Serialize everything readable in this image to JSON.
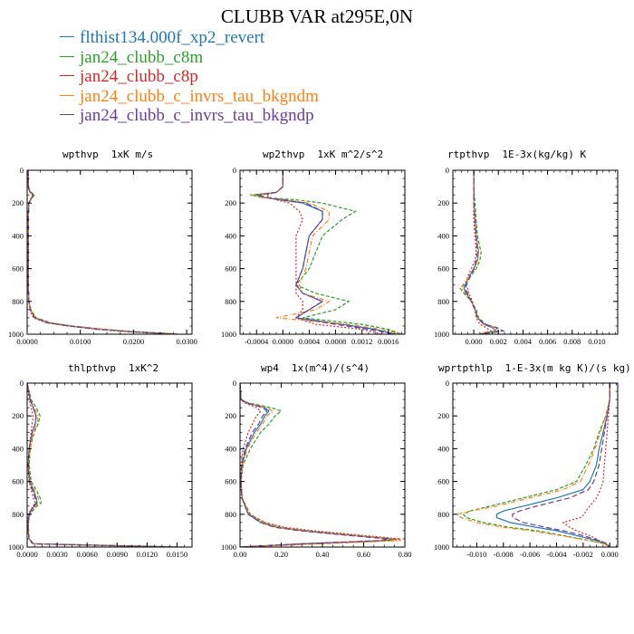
{
  "title": "CLUBB VAR at295E,0N",
  "legend": [
    {
      "name": "flthist134.000f_xp2_revert",
      "color": "#1f77b4",
      "dash": ""
    },
    {
      "name": "jan24_clubb_c8m",
      "color": "#2ca02c",
      "dash": "4,2"
    },
    {
      "name": "jan24_clubb_c8p",
      "color": "#d62728",
      "dash": "2,2"
    },
    {
      "name": "jan24_clubb_c_invrs_tau_bkgndm",
      "color": "#ff7f0e",
      "dash": "5,2,1,2"
    },
    {
      "name": "jan24_clubb_c_invrs_tau_bkgndp",
      "color": "#6a3d9a",
      "dash": "6,3"
    }
  ],
  "chart_data": [
    {
      "type": "line",
      "title": "wpthvp",
      "units": "1xK m/s",
      "ylim": [
        1000,
        0
      ],
      "yticks": [
        0,
        200,
        400,
        600,
        800,
        1000
      ],
      "xlim": [
        0,
        0.031
      ],
      "xticks": [
        "0.0000",
        "0.0100",
        "0.0200",
        "0.0300"
      ],
      "xtick_values": [
        0,
        0.01,
        0.02,
        0.03
      ],
      "y": [
        0,
        100,
        130,
        150,
        170,
        200,
        300,
        500,
        700,
        800,
        850,
        900,
        930,
        950,
        970,
        985,
        995,
        1000
      ],
      "series": [
        {
          "values": [
            0.0002,
            0.0002,
            0.0005,
            0.0012,
            0.0008,
            0.0003,
            0.0002,
            0.0002,
            0.0002,
            0.0003,
            0.0006,
            0.0015,
            0.004,
            0.008,
            0.014,
            0.02,
            0.026,
            0.028
          ]
        },
        {
          "values": [
            0.0002,
            0.0002,
            0.0006,
            0.0014,
            0.0009,
            0.0003,
            0.0002,
            0.0002,
            0.0002,
            0.0003,
            0.0007,
            0.0017,
            0.0045,
            0.0085,
            0.0145,
            0.0205,
            0.0265,
            0.0285
          ]
        },
        {
          "values": [
            0.0002,
            0.0002,
            0.0004,
            0.001,
            0.0007,
            0.0003,
            0.0002,
            0.0002,
            0.0002,
            0.0003,
            0.0005,
            0.0012,
            0.0035,
            0.0075,
            0.013,
            0.019,
            0.025,
            0.027
          ]
        },
        {
          "values": [
            0.0002,
            0.0002,
            0.0005,
            0.0013,
            0.0008,
            0.0003,
            0.0002,
            0.0002,
            0.0002,
            0.0003,
            0.0006,
            0.0016,
            0.0042,
            0.0082,
            0.0142,
            0.0202,
            0.0262,
            0.0282
          ]
        },
        {
          "values": [
            0.0002,
            0.0002,
            0.0005,
            0.0011,
            0.0008,
            0.0003,
            0.0002,
            0.0002,
            0.0002,
            0.0003,
            0.0006,
            0.0014,
            0.0038,
            0.0078,
            0.0135,
            0.0195,
            0.0255,
            0.0275
          ]
        }
      ]
    },
    {
      "type": "line",
      "title": "wp2thvp",
      "units": "1xK m^2/s^2",
      "ylim": [
        1000,
        0
      ],
      "yticks": [
        0,
        200,
        400,
        600,
        800,
        1000
      ],
      "xlim": [
        -0.00065,
        0.00185
      ],
      "xticks": [
        "-0.0004",
        "0.0000",
        "0.0004",
        "0.0008",
        "0.0012",
        "0.0016"
      ],
      "xtick_values": [
        -0.0004,
        0,
        0.0004,
        0.0008,
        0.0012,
        0.0016
      ],
      "y": [
        0,
        100,
        135,
        150,
        165,
        180,
        200,
        250,
        300,
        400,
        500,
        600,
        700,
        750,
        800,
        850,
        900,
        940,
        970,
        1000
      ],
      "series": [
        {
          "values": [
            0,
            0,
            -0.0001,
            -0.0004,
            -0.0003,
            -5e-05,
            0.0003,
            0.0006,
            0.0006,
            0.0004,
            0.00035,
            0.0003,
            0.0002,
            0.0003,
            0.0006,
            0.0004,
            0.0002,
            0.0009,
            0.0014,
            0.0017
          ]
        },
        {
          "values": [
            0,
            0,
            -0.0001,
            -0.0005,
            -0.0003,
            0.0002,
            0.0006,
            0.0011,
            0.0009,
            0.0006,
            0.0005,
            0.0004,
            0.0002,
            0.0005,
            0.001,
            0.0008,
            0.0003,
            0.0012,
            0.0016,
            0.0018
          ]
        },
        {
          "values": [
            0,
            0,
            -0.0001,
            -0.00025,
            -0.0002,
            -0.0001,
            0.0001,
            0.00025,
            0.0003,
            0.0002,
            0.0002,
            0.0002,
            0.0002,
            0.0002,
            0.0003,
            0.0003,
            0.0002,
            0.0005,
            0.0012,
            0.0015
          ]
        },
        {
          "values": [
            0,
            0,
            -0.0001,
            -0.00045,
            -0.00035,
            0,
            0.0004,
            0.0007,
            0.0007,
            0.00045,
            0.0004,
            0.00035,
            0.00025,
            0.0003,
            0.0007,
            0.0005,
            -0.0001,
            0.001,
            0.0015,
            0.0018
          ]
        },
        {
          "values": [
            0,
            0,
            -0.0001,
            -0.00035,
            -0.00025,
            0,
            0.00035,
            0.0006,
            0.0006,
            0.0004,
            0.00035,
            0.0003,
            0.0002,
            0.0003,
            0.0006,
            0.0004,
            0.0002,
            0.0008,
            0.0013,
            0.0017
          ]
        }
      ]
    },
    {
      "type": "line",
      "title": "rtpthvp",
      "units": "1E-3x(kg/kg) K",
      "ylim": [
        1000,
        0
      ],
      "yticks": [
        0,
        200,
        400,
        600,
        800,
        1000
      ],
      "xlim": [
        -0.0017,
        0.0117
      ],
      "xticks": [
        "0.000",
        "0.002",
        "0.004",
        "0.006",
        "0.008",
        "0.010"
      ],
      "xtick_values": [
        0,
        0.002,
        0.004,
        0.006,
        0.008,
        0.01
      ],
      "y": [
        0,
        100,
        200,
        300,
        400,
        500,
        550,
        600,
        650,
        700,
        720,
        750,
        800,
        850,
        900,
        940,
        960,
        980,
        1000
      ],
      "series": [
        {
          "values": [
            0,
            0,
            0,
            0.0001,
            0.0002,
            0.0004,
            0.0003,
            0,
            -0.0004,
            -0.0007,
            -0.0008,
            -0.0006,
            -0.0002,
            0.0001,
            0.0003,
            0.0008,
            0.0015,
            0.0018,
            0.0005
          ]
        },
        {
          "values": [
            0,
            0,
            0.0001,
            0.0002,
            0.0003,
            0.0006,
            0.0005,
            0.0002,
            -0.0003,
            -0.0008,
            -0.0011,
            -0.0008,
            -0.0002,
            0.0002,
            0.0004,
            0.001,
            0.0018,
            0.002,
            0.0006
          ]
        },
        {
          "values": [
            0,
            0,
            0,
            0,
            0.0001,
            0.0002,
            0.0001,
            -0.0002,
            -0.0005,
            -0.0006,
            -0.0005,
            -0.0004,
            -0.0001,
            0.0001,
            0.0002,
            0.0005,
            0.001,
            0.0014,
            0.0004
          ]
        },
        {
          "values": [
            0,
            0,
            0,
            0.0001,
            0.0002,
            0.0004,
            0.0003,
            0.0001,
            -0.0004,
            -0.0009,
            -0.001,
            -0.0007,
            -0.0002,
            0.0001,
            0.0003,
            0.0009,
            0.0016,
            0.0019,
            0.0005
          ]
        },
        {
          "values": [
            0,
            0,
            0,
            0.0001,
            0.0002,
            0.0003,
            0.0002,
            0,
            -0.0003,
            -0.0006,
            -0.0007,
            -0.0005,
            -0.0002,
            0.0001,
            0.0003,
            0.0009,
            0.0019,
            0.0024,
            0.0006
          ]
        }
      ]
    },
    {
      "type": "line",
      "title": "thlpthvp",
      "units": "1xK^2",
      "ylim": [
        1000,
        0
      ],
      "yticks": [
        0,
        200,
        400,
        600,
        800,
        1000
      ],
      "xlim": [
        0,
        0.0165
      ],
      "xticks": [
        "0.0000",
        "0.0030",
        "0.0060",
        "0.0090",
        "0.0120",
        "0.0150"
      ],
      "xtick_values": [
        0,
        0.003,
        0.006,
        0.009,
        0.012,
        0.015
      ],
      "y": [
        0,
        100,
        150,
        200,
        250,
        300,
        400,
        500,
        600,
        650,
        700,
        730,
        760,
        800,
        850,
        900,
        950,
        980,
        1000
      ],
      "series": [
        {
          "values": [
            0,
            0.0003,
            0.0006,
            0.0009,
            0.0008,
            0.0005,
            0.0002,
            0.0001,
            0.0003,
            0.0006,
            0.0009,
            0.001,
            0.0006,
            0.0002,
            0.0001,
            0.0001,
            0.0002,
            0.0006,
            0.015
          ]
        },
        {
          "values": [
            0,
            0.0004,
            0.0009,
            0.0013,
            0.0011,
            0.0007,
            0.0003,
            0.0002,
            0.0004,
            0.0009,
            0.0013,
            0.0014,
            0.0008,
            0.0003,
            0.0001,
            0.0001,
            0.0002,
            0.0007,
            0.016
          ]
        },
        {
          "values": [
            0,
            0.0002,
            0.0004,
            0.0006,
            0.0005,
            0.0004,
            0.0002,
            0.0001,
            0.0002,
            0.0004,
            0.0006,
            0.0008,
            0.0005,
            0.0001,
            0.0001,
            0.0001,
            0.0002,
            0.0005,
            0.014
          ]
        },
        {
          "values": [
            0,
            0.0003,
            0.0007,
            0.0011,
            0.001,
            0.0006,
            0.0003,
            0.0001,
            0.0003,
            0.0007,
            0.0011,
            0.0012,
            0.0007,
            0.0002,
            0.0001,
            0.0001,
            0.0002,
            0.0006,
            0.0155
          ]
        },
        {
          "values": [
            0,
            0.0003,
            0.0006,
            0.0009,
            0.0008,
            0.0005,
            0.0002,
            0.0001,
            0.0002,
            0.0005,
            0.0008,
            0.0009,
            0.0005,
            0.0002,
            0.0001,
            0.0001,
            0.0002,
            0.0006,
            0.0148
          ]
        }
      ]
    },
    {
      "type": "line",
      "title": "wp4",
      "units": "1x(m^4)/(s^4)",
      "ylim": [
        1000,
        0
      ],
      "yticks": [
        0,
        200,
        400,
        600,
        800,
        1000
      ],
      "xlim": [
        0,
        0.8
      ],
      "xticks": [
        "0.00",
        "0.20",
        "0.40",
        "0.60",
        "0.80"
      ],
      "xtick_values": [
        0,
        0.2,
        0.4,
        0.6,
        0.8
      ],
      "y": [
        0,
        100,
        120,
        150,
        170,
        200,
        250,
        300,
        400,
        500,
        600,
        700,
        800,
        850,
        880,
        900,
        930,
        950,
        960,
        980,
        1000
      ],
      "series": [
        {
          "values": [
            0,
            0.005,
            0.03,
            0.12,
            0.14,
            0.12,
            0.1,
            0.07,
            0.03,
            0.01,
            0.005,
            0.01,
            0.04,
            0.1,
            0.18,
            0.3,
            0.55,
            0.75,
            0.7,
            0.3,
            0
          ]
        },
        {
          "values": [
            0,
            0.005,
            0.04,
            0.15,
            0.2,
            0.17,
            0.14,
            0.1,
            0.05,
            0.015,
            0.005,
            0.01,
            0.05,
            0.12,
            0.2,
            0.32,
            0.57,
            0.76,
            0.72,
            0.32,
            0
          ]
        },
        {
          "values": [
            0,
            0.005,
            0.02,
            0.08,
            0.1,
            0.08,
            0.06,
            0.04,
            0.015,
            0.005,
            0.003,
            0.008,
            0.04,
            0.12,
            0.22,
            0.35,
            0.6,
            0.78,
            0.74,
            0.35,
            0
          ]
        },
        {
          "values": [
            0,
            0.005,
            0.035,
            0.13,
            0.16,
            0.13,
            0.11,
            0.08,
            0.035,
            0.012,
            0.005,
            0.01,
            0.045,
            0.11,
            0.19,
            0.31,
            0.56,
            0.76,
            0.78,
            0.4,
            0
          ]
        },
        {
          "values": [
            0,
            0.005,
            0.03,
            0.11,
            0.13,
            0.11,
            0.09,
            0.06,
            0.025,
            0.008,
            0.004,
            0.009,
            0.04,
            0.1,
            0.17,
            0.29,
            0.53,
            0.72,
            0.68,
            0.3,
            0
          ]
        }
      ]
    },
    {
      "type": "line",
      "title": "wprtpthlp",
      "units": "1-E-3x(m kg K)/(s kg)",
      "ylim": [
        1000,
        0
      ],
      "yticks": [
        0,
        200,
        400,
        600,
        800,
        1000
      ],
      "xlim": [
        -0.0118,
        0.0006
      ],
      "xticks": [
        "-0.010",
        "-0.008",
        "-0.006",
        "-0.004",
        "-0.002",
        "0.000"
      ],
      "xtick_values": [
        -0.01,
        -0.008,
        -0.006,
        -0.004,
        -0.002,
        0
      ],
      "y": [
        0,
        100,
        200,
        300,
        400,
        500,
        600,
        650,
        700,
        750,
        780,
        800,
        820,
        850,
        880,
        900,
        930,
        960,
        980,
        1000
      ],
      "series": [
        {
          "values": [
            0,
            0,
            -0.0002,
            -0.0005,
            -0.0008,
            -0.001,
            -0.0015,
            -0.002,
            -0.004,
            -0.0065,
            -0.008,
            -0.0085,
            -0.0085,
            -0.0075,
            -0.0055,
            -0.004,
            -0.0025,
            -0.001,
            -0.0003,
            0
          ]
        },
        {
          "values": [
            0,
            0,
            -0.0003,
            -0.0008,
            -0.0012,
            -0.0018,
            -0.0025,
            -0.004,
            -0.0065,
            -0.009,
            -0.0105,
            -0.011,
            -0.0108,
            -0.0095,
            -0.0075,
            -0.0055,
            -0.0035,
            -0.0015,
            -0.0004,
            0
          ]
        },
        {
          "values": [
            0,
            0,
            -0.0001,
            -0.0002,
            -0.0003,
            -0.0004,
            -0.0005,
            -0.0007,
            -0.001,
            -0.0015,
            -0.0018,
            -0.0019,
            -0.0022,
            -0.0035,
            -0.003,
            -0.0025,
            -0.0015,
            -0.0008,
            -0.0002,
            0
          ]
        },
        {
          "values": [
            0,
            0,
            -0.0003,
            -0.0007,
            -0.0011,
            -0.0016,
            -0.0022,
            -0.0035,
            -0.006,
            -0.0085,
            -0.0105,
            -0.0115,
            -0.0112,
            -0.01,
            -0.008,
            -0.006,
            -0.0037,
            -0.0015,
            -0.0004,
            0
          ]
        },
        {
          "values": [
            0,
            0,
            -0.0002,
            -0.0004,
            -0.0006,
            -0.0008,
            -0.0012,
            -0.0016,
            -0.003,
            -0.0055,
            -0.0068,
            -0.0073,
            -0.0073,
            -0.0065,
            -0.0048,
            -0.0035,
            -0.002,
            -0.0008,
            -0.0002,
            0
          ]
        }
      ]
    }
  ]
}
